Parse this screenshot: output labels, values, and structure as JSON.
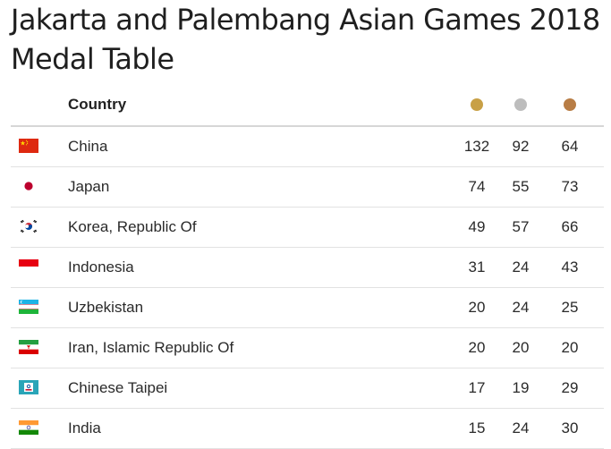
{
  "title_line1": "Jakarta and Palembang Asian Games 2018",
  "title_line2": "Medal Table",
  "header": {
    "country": "Country",
    "gold_color": "#c8a046",
    "silver_color": "#bdbdbd",
    "bronze_color": "#b87d45"
  },
  "rows": [
    {
      "country": "China",
      "gold": "132",
      "silver": "92",
      "bronze": "64",
      "flag_icon": "china-flag-icon"
    },
    {
      "country": "Japan",
      "gold": "74",
      "silver": "55",
      "bronze": "73",
      "flag_icon": "japan-flag-icon"
    },
    {
      "country": "Korea, Republic Of",
      "gold": "49",
      "silver": "57",
      "bronze": "66",
      "flag_icon": "korea-flag-icon"
    },
    {
      "country": "Indonesia",
      "gold": "31",
      "silver": "24",
      "bronze": "43",
      "flag_icon": "indonesia-flag-icon"
    },
    {
      "country": "Uzbekistan",
      "gold": "20",
      "silver": "24",
      "bronze": "25",
      "flag_icon": "uzbekistan-flag-icon"
    },
    {
      "country": "Iran, Islamic Republic Of",
      "gold": "20",
      "silver": "20",
      "bronze": "20",
      "flag_icon": "iran-flag-icon"
    },
    {
      "country": "Chinese Taipei",
      "gold": "17",
      "silver": "19",
      "bronze": "29",
      "flag_icon": "chinese-taipei-flag-icon"
    },
    {
      "country": "India",
      "gold": "15",
      "silver": "24",
      "bronze": "30",
      "flag_icon": "india-flag-icon"
    }
  ]
}
